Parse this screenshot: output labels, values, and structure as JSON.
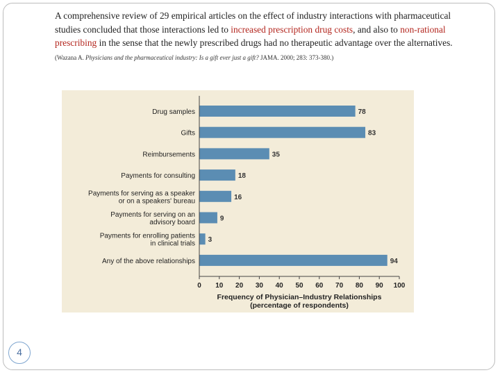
{
  "slide": {
    "text_part1": "A comprehensive review of 29 empirical articles on the effect of industry interactions with pharmaceutical studies concluded that those interactions led to ",
    "highlight1": "increased prescription drug costs",
    "text_part2": ", and also to ",
    "highlight2": "non-rational prescribing",
    "text_part3": " in the sense that the newly prescribed drugs had no therapeutic advantage over the alternatives. ",
    "citation_prefix": "(Wazana A. ",
    "citation_title": "Physicians and the pharmaceutical industry: Is a gift ever just a gift?",
    "citation_suffix": " JAMA. 2000; 283: 373-380.)",
    "slide_number": "4",
    "colors": {
      "highlight": "#b3261e",
      "bar": "#5b8db3",
      "chart_background": "#f3ecd9"
    }
  },
  "chart_data": {
    "type": "bar",
    "orientation": "horizontal",
    "categories": [
      [
        "Drug samples"
      ],
      [
        "Gifts"
      ],
      [
        "Reimbursements"
      ],
      [
        "Payments for consulting"
      ],
      [
        "Payments for serving as a speaker",
        "or on a speakers' bureau"
      ],
      [
        "Payments for serving on an",
        "advisory board"
      ],
      [
        "Payments for enrolling patients",
        "in clinical trials"
      ],
      [
        "Any of the above relationships"
      ]
    ],
    "values": [
      78,
      83,
      35,
      18,
      16,
      9,
      3,
      94
    ],
    "xlim": [
      0,
      100
    ],
    "xticks": [
      0,
      10,
      20,
      30,
      40,
      50,
      60,
      70,
      80,
      90,
      100
    ],
    "xlabel": [
      "Frequency of Physician–Industry Relationships",
      "(percentage of respondents)"
    ],
    "ylabel": "",
    "title": "",
    "grid": false,
    "legend": "none"
  }
}
